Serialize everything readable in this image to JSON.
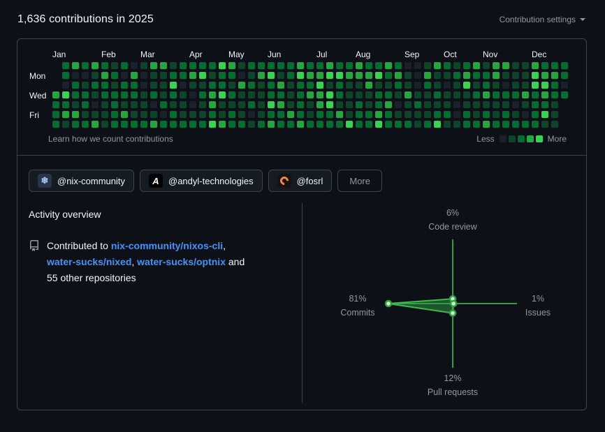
{
  "page": {
    "background": "#0d1117"
  },
  "header": {
    "title": "1,636 contributions in 2025",
    "settings_label": "Contribution settings"
  },
  "calendar": {
    "footer_link": "Learn how we count contributions",
    "legend_less": "Less",
    "legend_more": "More"
  },
  "filters": {
    "orgs": [
      {
        "handle": "@nix-community",
        "avatar_icon": "nix-snowflake-icon",
        "avatar_bg": "#2a3448",
        "avatar_color": "#9ecbff",
        "avatar_glyph": "❄"
      },
      {
        "handle": "@andyl-technologies",
        "avatar_icon": "andyl-a-icon",
        "avatar_bg": "#000000",
        "avatar_color": "#ffffff",
        "avatar_glyph": "A"
      },
      {
        "handle": "@fosrl",
        "avatar_icon": "fosrl-flame-icon",
        "avatar_bg": "#17120f",
        "avatar_color": "#f0883e",
        "avatar_glyph": "arc"
      }
    ],
    "more_label": "More"
  },
  "activity": {
    "heading": "Activity overview",
    "contributed_prefix": "Contributed to",
    "repos": [
      "nix-community/nixos-cli",
      "water-sucks/nixed",
      "water-sucks/optnix"
    ],
    "contributed_suffix": "and 55 other repositories",
    "link_color": "#4493f8"
  },
  "chart_data": [
    {
      "type": "heatmap",
      "title": "Contribution calendar 2025",
      "day_labels": [
        {
          "name": "Mon",
          "row": 1
        },
        {
          "name": "Wed",
          "row": 3
        },
        {
          "name": "Fri",
          "row": 5
        }
      ],
      "month_labels": [
        {
          "name": "Jan",
          "col": 0
        },
        {
          "name": "Feb",
          "col": 5
        },
        {
          "name": "Mar",
          "col": 9
        },
        {
          "name": "Apr",
          "col": 14
        },
        {
          "name": "May",
          "col": 18
        },
        {
          "name": "Jun",
          "col": 22
        },
        {
          "name": "Jul",
          "col": 27
        },
        {
          "name": "Aug",
          "col": 31
        },
        {
          "name": "Sep",
          "col": 36
        },
        {
          "name": "Oct",
          "col": 40
        },
        {
          "name": "Nov",
          "col": 44
        },
        {
          "name": "Dec",
          "col": 49
        }
      ],
      "palette": [
        "#1b212a",
        "#0e4429",
        "#006d32",
        "#26a641",
        "#39d353"
      ],
      "weeks": [
        "...3222",
        "2204231",
        "3022132",
        "2012212",
        "3121013",
        "2322111",
        "1212222",
        "2022132",
        "0322112",
        "1001112",
        "3112013",
        "3111202",
        "1242122",
        "2201112",
        "2310012",
        "2412112",
        "2123324",
        "4224113",
        "3212122",
        "1031112",
        "2121201",
        "2311112",
        "2422423",
        "2132322",
        "2211132",
        "3422223",
        "2323112",
        "2343322",
        "3414422",
        "2422132",
        "2311114",
        "3311222",
        "2331122",
        "2412234",
        "3212322",
        "2321012",
        "0113112",
        "0001211",
        "1321112",
        "3112124",
        "2101121",
        "1211001",
        "2341122",
        "3212112",
        "1223123",
        "3312112",
        "3102122",
        "1112012",
        "1113102",
        "3442222",
        "2343241",
        "2322111",
        "2202..."
      ]
    },
    {
      "type": "radar",
      "title": "Activity overview breakdown",
      "axes": [
        {
          "label": "Code review",
          "pct": "6%",
          "value": 6,
          "position": "top"
        },
        {
          "label": "Issues",
          "pct": "1%",
          "value": 1,
          "position": "right"
        },
        {
          "label": "Pull requests",
          "pct": "12%",
          "value": 12,
          "position": "bottom"
        },
        {
          "label": "Commits",
          "pct": "81%",
          "value": 81,
          "position": "left"
        }
      ],
      "axis_color": "#2ea043",
      "stroke_color": "#3fb950",
      "fill_color": "#2ea043",
      "fill_opacity": 0.5,
      "dot_fill": "#cdf5cd"
    }
  ]
}
